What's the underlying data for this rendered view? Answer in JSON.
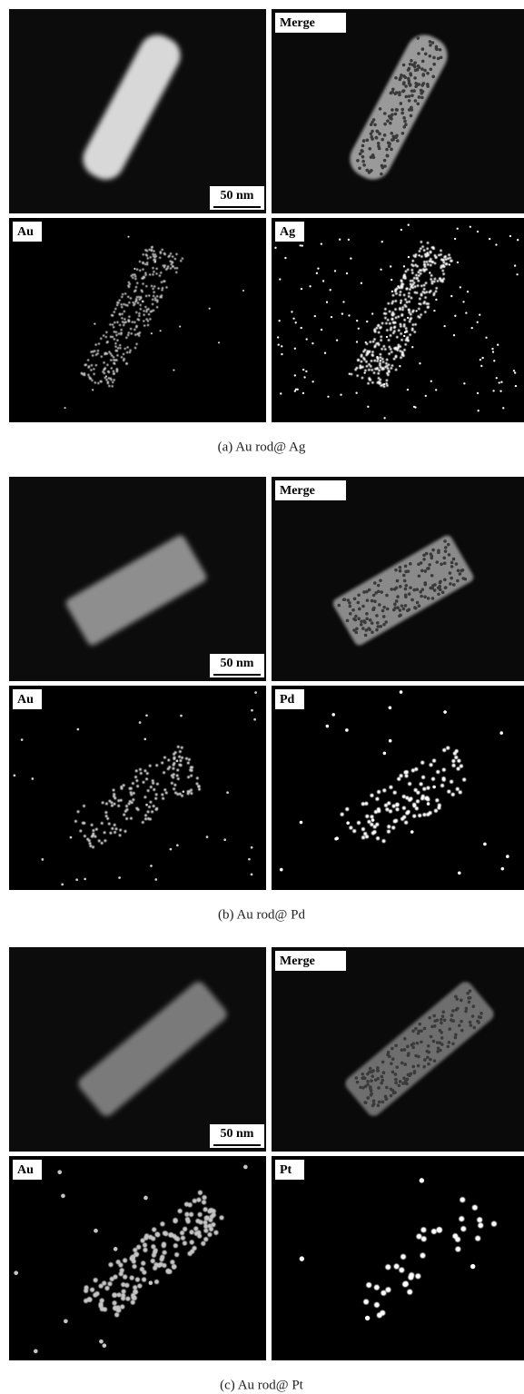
{
  "panels": [
    {
      "caption": "(a) Au rod@ Ag",
      "scale_bar": "50 nm",
      "merge_label": "Merge",
      "maps": [
        "Au",
        "Ag"
      ]
    },
    {
      "caption": "(b) Au rod@ Pd",
      "scale_bar": "50 nm",
      "merge_label": "Merge",
      "maps": [
        "Au",
        "Pd"
      ]
    },
    {
      "caption": "(c) Au rod@ Pt",
      "scale_bar": "50 nm",
      "merge_label": "Merge",
      "maps": [
        "Au",
        "Pt"
      ]
    }
  ]
}
